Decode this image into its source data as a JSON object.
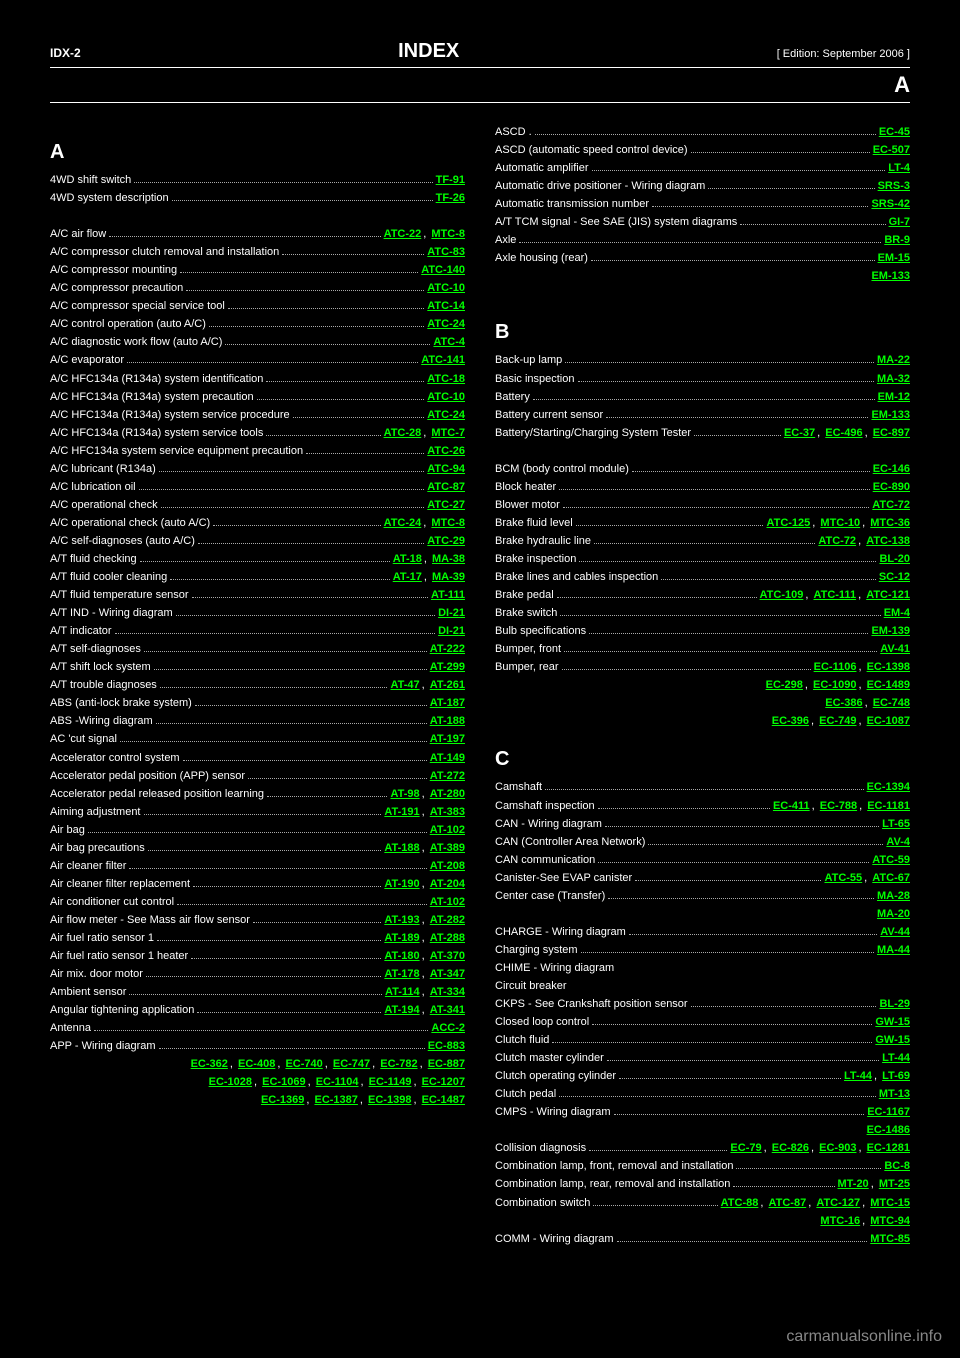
{
  "header": {
    "page": "IDX-2",
    "title": "INDEX",
    "sub": "[ Edition: September 2006 ]"
  },
  "title_bar": "A",
  "watermark": "carmanualsonline.info",
  "columns": [
    {
      "sections": [
        {
          "letter": "A",
          "entries": [
            {
              "label": "4WD shift switch",
              "refs": [
                "TF-91"
              ]
            },
            {
              "label": "4WD system description",
              "refs": [
                "TF-26"
              ]
            },
            {
              "label": "",
              "refs": []
            },
            {
              "label": "A/C air flow",
              "refs": [
                "ATC-22",
                "MTC-8"
              ]
            },
            {
              "label": "A/C compressor clutch removal and installation",
              "refs": [
                "ATC-83"
              ]
            },
            {
              "label": "A/C compressor mounting",
              "refs": [
                "ATC-140"
              ],
              "wrap": true
            },
            {
              "label": "A/C compressor precaution",
              "refs": [
                "ATC-10"
              ]
            },
            {
              "label": "A/C compressor special service tool",
              "refs": [
                "ATC-14"
              ]
            },
            {
              "label": "A/C control operation (auto A/C)",
              "refs": [
                "ATC-24"
              ]
            },
            {
              "label": "A/C diagnostic work flow (auto A/C)",
              "refs": [
                "ATC-4"
              ]
            },
            {
              "label": "A/C evaporator",
              "refs": [
                "ATC-141"
              ],
              "wrap": true
            },
            {
              "label": "A/C HFC134a (R134a) system identification",
              "refs": [
                "ATC-18"
              ],
              "wrap": true
            },
            {
              "label": "A/C HFC134a (R134a) system precaution",
              "refs": [
                "ATC-10"
              ],
              "wrap": true
            },
            {
              "label": "A/C HFC134a (R134a) system service procedure",
              "refs": [
                "ATC-24"
              ],
              "wrap": true
            },
            {
              "label": "A/C HFC134a (R134a) system service tools",
              "refs": [
                "ATC-28",
                "MTC-7"
              ],
              "wrap": true
            },
            {
              "label": "A/C HFC134a system service equipment precaution",
              "refs": [
                "ATC-26"
              ],
              "wrap": true
            },
            {
              "label": "A/C lubricant (R134a)",
              "refs": [
                "ATC-94"
              ]
            },
            {
              "label": "A/C lubrication oil",
              "refs": [
                "ATC-87"
              ]
            },
            {
              "label": "A/C operational check",
              "refs": [
                "ATC-27"
              ]
            },
            {
              "label": "A/C operational check (auto A/C)",
              "refs": [
                "ATC-24",
                "MTC-8"
              ]
            },
            {
              "label": "A/C self-diagnoses (auto A/C)",
              "refs": [
                "ATC-29"
              ]
            },
            {
              "label": "A/T fluid checking",
              "refs": [
                "AT-18",
                "MA-38"
              ]
            },
            {
              "label": "A/T fluid cooler cleaning",
              "refs": [
                "AT-17",
                "MA-39"
              ]
            },
            {
              "label": "A/T fluid temperature sensor",
              "refs": [
                "AT-111"
              ]
            },
            {
              "label": "A/T IND - Wiring diagram",
              "refs": [
                "DI-21"
              ]
            },
            {
              "label": "A/T indicator",
              "refs": [
                "DI-21"
              ]
            },
            {
              "label": "A/T self-diagnoses",
              "refs": [
                "AT-222"
              ]
            },
            {
              "label": "A/T shift lock system",
              "refs": [
                "AT-299"
              ]
            },
            {
              "label": "A/T trouble diagnoses",
              "refs": [
                "AT-47",
                "AT-261"
              ]
            },
            {
              "label": "ABS (anti-lock brake system)",
              "refs": [
                "AT-187"
              ]
            },
            {
              "label": "ABS -Wiring diagram",
              "refs": [
                "AT-188"
              ]
            },
            {
              "label": "AC 'cut signal",
              "refs": [
                "AT-197"
              ]
            },
            {
              "label": "Accelerator control system",
              "refs": [
                "AT-149"
              ]
            },
            {
              "label": "Accelerator pedal position (APP) sensor",
              "refs": [
                "AT-272"
              ],
              "wrap": true
            },
            {
              "label": "Accelerator pedal released position learning",
              "refs": [
                "AT-98",
                "AT-280"
              ],
              "wrap": true
            },
            {
              "label": "Aiming adjustment",
              "refs": [
                "AT-191",
                "AT-383"
              ]
            },
            {
              "label": "Air bag",
              "refs": [
                "AT-102"
              ]
            },
            {
              "label": "Air bag precautions",
              "refs": [
                "AT-188",
                "AT-389"
              ]
            },
            {
              "label": "Air cleaner filter",
              "refs": [
                "AT-208"
              ]
            },
            {
              "label": "Air cleaner filter replacement",
              "refs": [
                "AT-190",
                "AT-204"
              ]
            },
            {
              "label": "Air conditioner cut control",
              "refs": [
                "AT-102"
              ]
            },
            {
              "label": "Air flow meter - See Mass air flow sensor",
              "refs": [
                "AT-193",
                "AT-282"
              ],
              "wrap": true
            },
            {
              "label": "Air fuel ratio sensor 1",
              "refs": [
                "AT-189",
                "AT-288"
              ]
            },
            {
              "label": "Air fuel ratio sensor 1 heater",
              "refs": [
                "AT-180",
                "AT-370"
              ]
            },
            {
              "label": "Air mix. door motor",
              "refs": [
                "AT-178",
                "AT-347"
              ]
            },
            {
              "label": "Ambient sensor",
              "refs": [
                "AT-114",
                "AT-334"
              ]
            },
            {
              "label": "Angular tightening application",
              "refs": [
                "AT-194",
                "AT-341"
              ]
            },
            {
              "label": "Antenna",
              "refs": [
                "ACC-2"
              ]
            },
            {
              "label": "APP - Wiring diagram",
              "refs": [
                "EC-883"
              ]
            },
            {
              "label": "",
              "refstr": "EC-362, EC-408, EC-740, EC-747, EC-782, EC-887"
            },
            {
              "label": "",
              "refstr": "EC-1028, EC-1069, EC-1104, EC-1149, EC-1207"
            },
            {
              "label": "",
              "refstr": "EC-1369, EC-1387, EC-1398, EC-1487"
            }
          ]
        }
      ]
    },
    {
      "sections": [
        {
          "letter": "",
          "entries": [
            {
              "label": "ASCD .",
              "refs": [
                "EC-45"
              ]
            },
            {
              "label": "ASCD (automatic speed control device)",
              "refs": [
                "EC-507"
              ],
              "wrap": true
            },
            {
              "label": "Automatic amplifier",
              "refs": [
                "LT-4"
              ]
            },
            {
              "label": "Automatic drive positioner - Wiring diagram",
              "refs": [
                "SRS-3"
              ]
            },
            {
              "label": "Automatic transmission number",
              "refs": [
                "SRS-42"
              ]
            },
            {
              "label": "A/T TCM signal - See SAE (JIS) system diagrams",
              "refs": [
                "GI-7"
              ]
            },
            {
              "label": "Axle",
              "refs": [
                "BR-9"
              ]
            },
            {
              "label": "Axle housing (rear)",
              "refs": [
                "EM-15"
              ]
            },
            {
              "label": "",
              "refs": [
                "EM-133"
              ]
            },
            {
              "label": "",
              "refs": []
            }
          ]
        },
        {
          "letter": "B",
          "entries": [
            {
              "label": "Back-up lamp",
              "refs": [
                "MA-22"
              ],
              "prelabel": true
            },
            {
              "label": "Basic inspection",
              "refs": [
                "MA-32"
              ]
            },
            {
              "label": "Battery",
              "refs": [
                "EM-12"
              ]
            },
            {
              "label": "Battery current sensor",
              "refs": [
                "EM-133"
              ]
            },
            {
              "label": "Battery/Starting/Charging System Tester",
              "refs": [
                "EC-37",
                "EC-496",
                "EC-897"
              ]
            },
            {
              "label": "",
              "refs": [],
              "spacer": true
            },
            {
              "label": "BCM (body control module)",
              "refs": [
                "EC-146"
              ]
            },
            {
              "label": "Block heater",
              "refs": [
                "EC-890"
              ]
            },
            {
              "label": "Blower motor",
              "refs": [
                "ATC-72"
              ]
            },
            {
              "label": "Brake fluid level",
              "refs": [
                "ATC-125",
                "MTC-10",
                "MTC-36"
              ]
            },
            {
              "label": "Brake hydraulic line",
              "refs": [
                "ATC-72",
                "ATC-138"
              ]
            },
            {
              "label": "Brake inspection",
              "refs": [
                "BL-20"
              ]
            },
            {
              "label": "Brake lines and cables inspection",
              "refs": [
                "SC-12"
              ]
            },
            {
              "label": "Brake pedal",
              "refs": [
                "ATC-109",
                "ATC-111",
                "ATC-121"
              ]
            },
            {
              "label": "Brake switch",
              "refs": [
                "EM-4"
              ],
              "prelabel": true
            },
            {
              "label": "Bulb specifications",
              "refs": [
                "EM-139"
              ]
            },
            {
              "label": "Bumper, front",
              "refs": [
                "AV-41"
              ]
            },
            {
              "label": "Bumper, rear",
              "refs": [
                "EC-1106",
                "EC-1398"
              ]
            },
            {
              "label": "",
              "refstr": "EC-298, EC-1090, EC-1489"
            },
            {
              "label": "",
              "refstr": "EC-386, EC-748"
            },
            {
              "label": "",
              "refstr": "EC-396, EC-749, EC-1087"
            }
          ]
        },
        {
          "letter": "C",
          "entries": [
            {
              "label": "Camshaft",
              "refs": [
                "EC-1394"
              ],
              "prelabel": true
            },
            {
              "label": "Camshaft inspection",
              "refs": [
                "EC-411",
                "EC-788",
                "EC-1181"
              ]
            },
            {
              "label": "CAN - Wiring diagram",
              "refs": [
                "LT-65"
              ]
            },
            {
              "label": "CAN (Controller Area Network)",
              "refs": [
                "AV-4"
              ]
            },
            {
              "label": "CAN communication",
              "refs": [
                "ATC-59"
              ]
            },
            {
              "label": "Canister-See EVAP canister",
              "refs": [
                "ATC-55",
                "ATC-67"
              ]
            },
            {
              "label": "Center case (Transfer)",
              "refs": [
                "MA-28"
              ]
            },
            {
              "label": "",
              "refs": [
                "MA-20"
              ],
              "prelabel": true
            },
            {
              "label": "CHARGE - Wiring diagram",
              "refs": [
                "AV-44"
              ]
            },
            {
              "label": "Charging system",
              "refs": [
                "MA-44"
              ]
            },
            {
              "label": "CHIME - Wiring diagram",
              "refs": []
            },
            {
              "label": "Circuit breaker",
              "refs": []
            },
            {
              "label": "CKPS - See Crankshaft position sensor",
              "refs": [
                "BL-29"
              ]
            },
            {
              "label": "Closed loop control",
              "refs": [
                "GW-15"
              ]
            },
            {
              "label": "Clutch fluid",
              "refs": [
                "GW-15"
              ]
            },
            {
              "label": "Clutch master cylinder",
              "refs": [
                "LT-44"
              ]
            },
            {
              "label": "Clutch operating cylinder",
              "refs": [
                "LT-44",
                "LT-69"
              ]
            },
            {
              "label": "Clutch pedal",
              "refs": [
                "MT-13"
              ]
            },
            {
              "label": "CMPS - Wiring diagram",
              "refs": [
                "EC-1167"
              ]
            },
            {
              "label": "",
              "refs": [
                "EC-1486"
              ],
              "prelabel": true
            },
            {
              "label": "Collision diagnosis",
              "refstr": "EC-79, EC-826, EC-903, EC-1281"
            },
            {
              "label": "Combination lamp, front, removal and installation",
              "refs": [
                "BC-8"
              ],
              "wrap": true
            },
            {
              "label": "Combination lamp, rear, removal and installation",
              "refs": [
                "MT-20",
                "MT-25"
              ],
              "wrap": true
            },
            {
              "label": "Combination switch",
              "refstr": "ATC-88, ATC-87, ATC-127, MTC-15"
            },
            {
              "label": "",
              "refstr": "MTC-16, MTC-94"
            },
            {
              "label": "COMM - Wiring diagram",
              "refs": [
                "MTC-85"
              ]
            }
          ]
        }
      ]
    }
  ]
}
